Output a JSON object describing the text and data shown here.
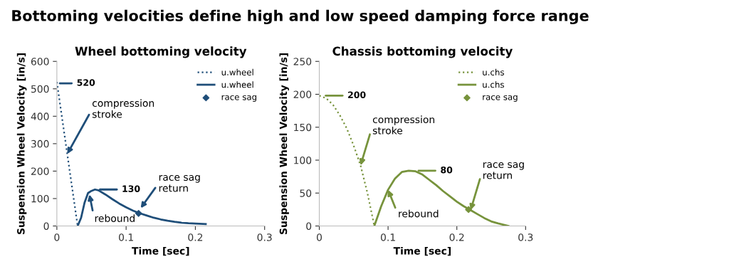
{
  "chart_data": [
    {
      "type": "line",
      "title": "Wheel bottoming velocity",
      "xlabel": "Time [sec]",
      "ylabel": "Suspension Wheel Velocity [in/s]",
      "xlim": [
        0,
        0.3
      ],
      "xticks": [
        0,
        0.1,
        0.2,
        0.3
      ],
      "ylim": [
        0,
        600
      ],
      "yticks": [
        0,
        100,
        200,
        300,
        400,
        500,
        600
      ],
      "grid": false,
      "legend": "top right",
      "annotations": [
        "Bottoming velocities define high and low speed damping force range",
        {
          "text": "520",
          "x": 0,
          "y": 520
        },
        {
          "text": "compression\nstroke",
          "x": 0.015,
          "y": 262.5
        },
        {
          "text": "130",
          "x": 0.058,
          "y": 133
        },
        {
          "text": "rebound",
          "x": 0.047,
          "y": 115
        },
        {
          "text": "race sag\nreturn",
          "x": 0.121,
          "y": 65
        }
      ],
      "series": [
        {
          "name": "u.wheel",
          "color": "#1f4e79",
          "line_style": "dotted",
          "marker": "none",
          "x": [
            0,
            0.03
          ],
          "values": [
            525,
            0
          ]
        },
        {
          "name": "u.wheel",
          "color": "#1f4e79",
          "line_style": "solid",
          "marker": "none",
          "x": [
            0.03,
            0.035,
            0.04,
            0.045,
            0.05,
            0.055,
            0.06,
            0.07,
            0.08,
            0.09,
            0.1,
            0.11,
            0.12,
            0.13,
            0.14,
            0.15,
            0.16,
            0.17,
            0.18,
            0.19,
            0.2,
            0.215
          ],
          "values": [
            0,
            30,
            85,
            120,
            128,
            133,
            130,
            115,
            98,
            82,
            68,
            56,
            46,
            38,
            30,
            24,
            19,
            15,
            12,
            10,
            9,
            7
          ]
        },
        {
          "name": "race sag",
          "type": "scatter",
          "color": "#1f4e79",
          "marker": "diamond",
          "x": [
            0.118
          ],
          "values": [
            46
          ]
        }
      ]
    },
    {
      "type": "line",
      "title": "Chassis bottoming velocity",
      "xlabel": "Time [sec]",
      "ylabel": "Suspension Wheel Velocity [in/s]",
      "xlim": [
        0,
        0.3
      ],
      "xticks": [
        0,
        0.1,
        0.2,
        0.3
      ],
      "ylim": [
        0,
        250
      ],
      "yticks": [
        0,
        50,
        100,
        150,
        200,
        250
      ],
      "grid": false,
      "legend": "top right",
      "annotations": [
        {
          "text": "200",
          "x": 0.005,
          "y": 198
        },
        {
          "text": "compression\nstroke",
          "x": 0.06,
          "y": 92
        },
        {
          "text": "80",
          "x": 0.14,
          "y": 84
        },
        {
          "text": "rebound",
          "x": 0.1,
          "y": 55
        },
        {
          "text": "race sag\nreturn",
          "x": 0.22,
          "y": 24
        }
      ],
      "series": [
        {
          "name": "u.chs",
          "color": "#77933c",
          "line_style": "dotted",
          "marker": "none",
          "x": [
            0,
            0.01,
            0.02,
            0.03,
            0.04,
            0.05,
            0.06,
            0.07,
            0.08
          ],
          "values": [
            198,
            194,
            184,
            168,
            148,
            122,
            92,
            50,
            0
          ]
        },
        {
          "name": "u.chs",
          "color": "#77933c",
          "line_style": "solid",
          "marker": "none",
          "x": [
            0.08,
            0.09,
            0.1,
            0.11,
            0.12,
            0.13,
            0.14,
            0.15,
            0.16,
            0.17,
            0.18,
            0.19,
            0.2,
            0.21,
            0.22,
            0.23,
            0.24,
            0.25,
            0.26,
            0.275
          ],
          "values": [
            0,
            30,
            55,
            72,
            82,
            84,
            83,
            78,
            70,
            62,
            53,
            45,
            37,
            30,
            24,
            18,
            12,
            7,
            4,
            0
          ]
        },
        {
          "name": "race sag",
          "type": "scatter",
          "color": "#77933c",
          "marker": "diamond",
          "x": [
            0.217
          ],
          "values": [
            25
          ]
        }
      ]
    }
  ]
}
